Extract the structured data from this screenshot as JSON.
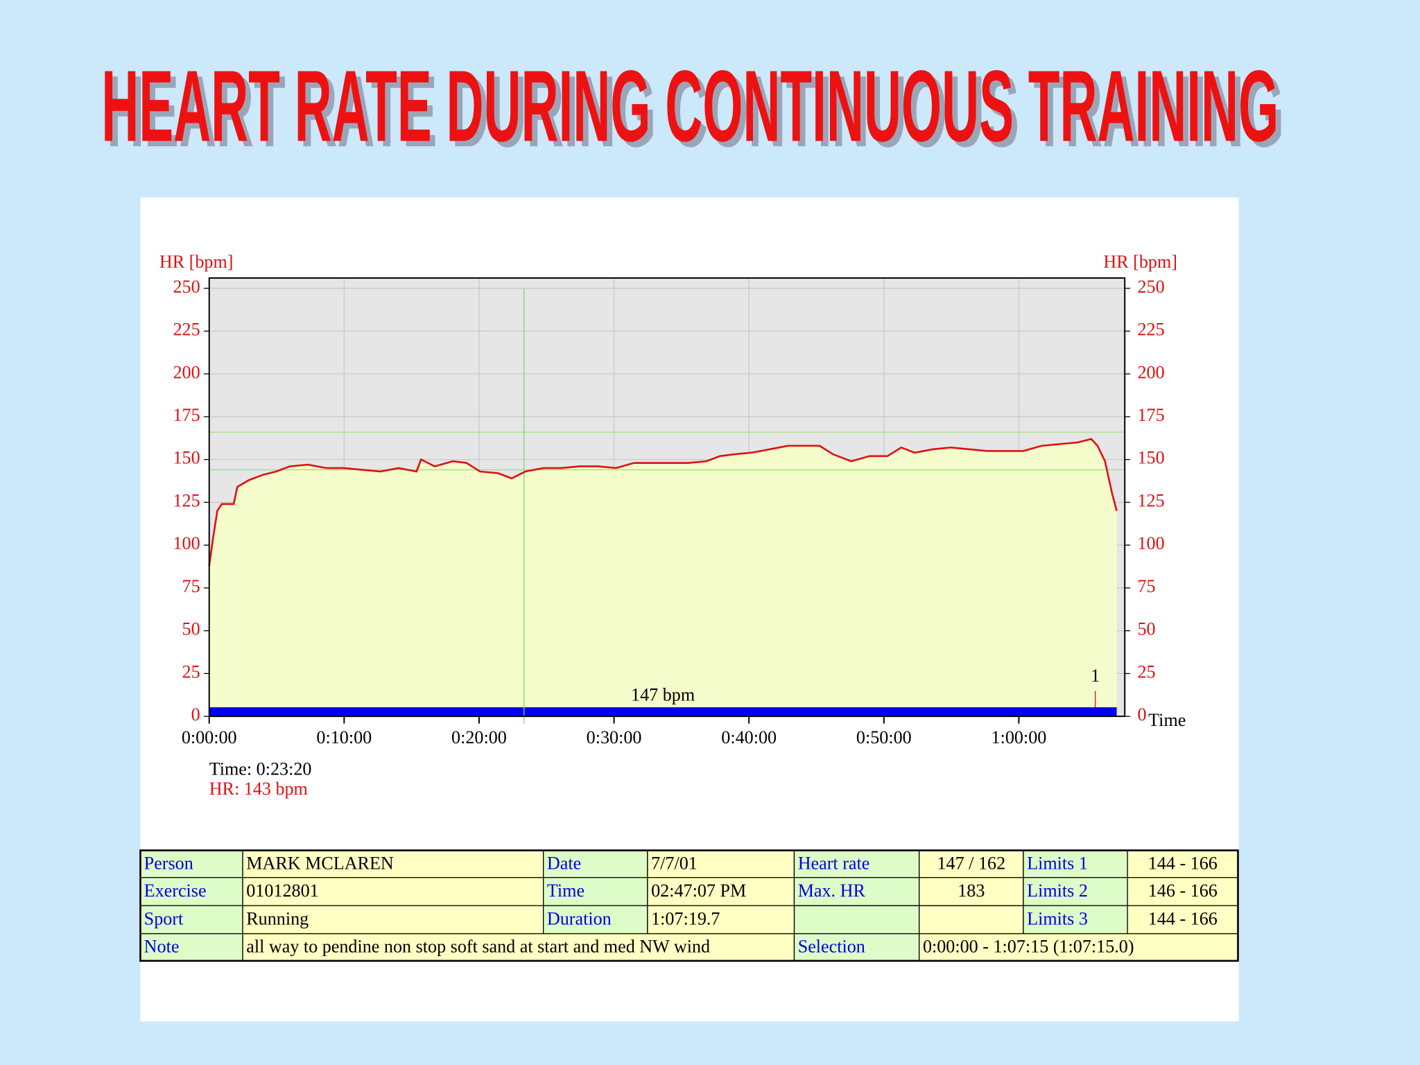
{
  "chart_data": {
    "type": "line",
    "title": "HEART RATE DURING CONTINUOUS TRAINING",
    "ylabel": "HR [bpm]",
    "xlabel": "Time",
    "color": "#e01010",
    "fill": "#f5fccc",
    "x": [
      0,
      16,
      36,
      56,
      109,
      125,
      177,
      238,
      298,
      358,
      439,
      520,
      600,
      680,
      761,
      842,
      922,
      942,
      1003,
      1083,
      1144,
      1204,
      1285,
      1345,
      1406,
      1486,
      1567,
      1647,
      1728,
      1808,
      1889,
      1969,
      2050,
      2130,
      2211,
      2271,
      2332,
      2412,
      2493,
      2573,
      2654,
      2714,
      2775,
      2855,
      2936,
      3016,
      3077,
      3137,
      3218,
      3298,
      3379,
      3459,
      3540,
      3620,
      3701,
      3781,
      3862,
      3922,
      3950,
      3983,
      4015,
      4035
    ],
    "values": [
      88,
      103,
      120,
      124,
      124,
      134,
      138,
      141,
      143,
      146,
      147,
      145,
      145,
      144,
      143,
      145,
      143,
      150,
      146,
      149,
      148,
      143,
      142,
      139,
      143,
      145,
      145,
      146,
      146,
      145,
      148,
      148,
      148,
      148,
      149,
      152,
      153,
      154,
      156,
      158,
      158,
      158,
      153,
      149,
      152,
      152,
      157,
      154,
      156,
      157,
      156,
      155,
      155,
      155,
      158,
      159,
      160,
      162,
      158,
      149,
      130,
      120
    ],
    "xlim": [
      0,
      4071
    ],
    "ylim": [
      0,
      256
    ],
    "xticks": [
      {
        "value": 0,
        "label": "0:00:00"
      },
      {
        "value": 600,
        "label": "0:10:00"
      },
      {
        "value": 1200,
        "label": "0:20:00"
      },
      {
        "value": 1800,
        "label": "0:30:00"
      },
      {
        "value": 2400,
        "label": "0:40:00"
      },
      {
        "value": 3000,
        "label": "0:50:00"
      },
      {
        "value": 3600,
        "label": "1:00:00"
      }
    ],
    "yticks": [
      0,
      25,
      50,
      75,
      100,
      125,
      150,
      175,
      200,
      225,
      250
    ],
    "grid": true,
    "limit_lines": [
      144,
      166
    ],
    "cursor": {
      "x": 1400,
      "time_label": "Time: 0:23:20",
      "hr_label": "HR: 143 bpm"
    },
    "average_label": "147 bpm",
    "lap": {
      "x": 3940,
      "label": "1"
    }
  },
  "table": {
    "rows": [
      [
        "Person",
        "MARK MCLAREN",
        "Date",
        "7/7/01",
        "Heart rate",
        "147 / 162",
        "Limits 1",
        "144 - 166"
      ],
      [
        "Exercise",
        "01012801",
        "Time",
        "02:47:07 PM",
        "Max. HR",
        "183",
        "Limits 2",
        "146 - 166"
      ],
      [
        "Sport",
        "Running",
        "Duration",
        "1:07:19.7",
        "Limits 3",
        "144 - 166"
      ],
      [
        "Note",
        "all way to pendine non stop soft sand at start and med NW wind",
        "Selection",
        "0:00:00 - 1:07:15 (1:07:15.0)"
      ]
    ]
  }
}
